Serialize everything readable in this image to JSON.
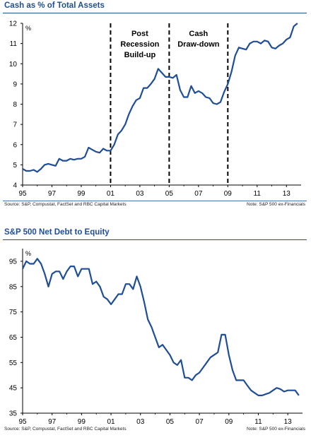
{
  "chart_data": [
    {
      "type": "line",
      "title": "Cash as % of Total Assets",
      "unit_label": "%",
      "xlim": [
        1995,
        2014
      ],
      "ylim": [
        4,
        12
      ],
      "y_ticks": [
        4,
        5,
        6,
        7,
        8,
        9,
        10,
        11,
        12
      ],
      "x_ticks": [
        1995,
        1997,
        1999,
        2001,
        2003,
        2005,
        2007,
        2009,
        2011,
        2013
      ],
      "x_tick_labels": [
        "95",
        "97",
        "99",
        "01",
        "03",
        "05",
        "07",
        "09",
        "11",
        "13"
      ],
      "line_color": "#1f4e96",
      "vlines": [
        2001,
        2005,
        2009
      ],
      "annotations": [
        {
          "lines": [
            "Post",
            "Recession",
            "Build-up"
          ],
          "x": 2003
        },
        {
          "lines": [
            "Cash",
            "Draw-down"
          ],
          "x": 2007
        }
      ],
      "series": [
        {
          "x": [
            1995,
            1995.25,
            1995.5,
            1995.75,
            1996,
            1996.25,
            1996.5,
            1996.75,
            1997,
            1997.25,
            1997.5,
            1997.75,
            1998,
            1998.25,
            1998.5,
            1998.75,
            1999,
            1999.25,
            1999.5,
            1999.75,
            2000,
            2000.25,
            2000.5,
            2000.75,
            2001,
            2001.25,
            2001.5,
            2001.75,
            2002,
            2002.25,
            2002.5,
            2002.75,
            2003,
            2003.25,
            2003.5,
            2003.75,
            2004,
            2004.25,
            2004.5,
            2004.75,
            2005,
            2005.25,
            2005.5,
            2005.75,
            2006,
            2006.25,
            2006.5,
            2006.75,
            2007,
            2007.25,
            2007.5,
            2007.75,
            2008,
            2008.25,
            2008.5,
            2008.75,
            2009,
            2009.25,
            2009.5,
            2009.75,
            2010,
            2010.25,
            2010.5,
            2010.75,
            2011,
            2011.25,
            2011.5,
            2011.75,
            2012,
            2012.25,
            2012.5,
            2012.75,
            2013,
            2013.25,
            2013.5,
            2013.75
          ],
          "values": [
            4.8,
            4.7,
            4.7,
            4.75,
            4.65,
            4.8,
            5.0,
            5.05,
            5.0,
            4.95,
            5.3,
            5.2,
            5.2,
            5.3,
            5.25,
            5.3,
            5.3,
            5.4,
            5.85,
            5.75,
            5.65,
            5.6,
            5.8,
            5.7,
            5.7,
            6.0,
            6.5,
            6.7,
            7.0,
            7.5,
            7.9,
            8.2,
            8.3,
            8.8,
            8.8,
            9.0,
            9.25,
            9.75,
            9.55,
            9.35,
            9.35,
            9.3,
            9.45,
            8.7,
            8.35,
            8.35,
            8.9,
            8.55,
            8.65,
            8.55,
            8.35,
            8.3,
            8.05,
            8.0,
            8.1,
            8.6,
            9.0,
            9.6,
            10.4,
            10.8,
            10.75,
            10.7,
            11.0,
            11.1,
            11.1,
            11.0,
            11.15,
            11.1,
            10.8,
            10.75,
            10.9,
            11.0,
            11.2,
            11.3,
            11.85,
            12.0
          ]
        }
      ],
      "source": "Source: S&P, Compustat, FactSet and RBC Capital Markets",
      "note": "Note: S&P 500  ex-Financials"
    },
    {
      "type": "line",
      "title": "S&P 500 Net Debt to Equity",
      "unit_label": "%",
      "xlim": [
        1995,
        2014
      ],
      "ylim": [
        35,
        100
      ],
      "y_ticks": [
        35,
        45,
        55,
        65,
        75,
        85,
        95
      ],
      "x_ticks": [
        1995,
        1997,
        1999,
        2001,
        2003,
        2005,
        2007,
        2009,
        2011,
        2013
      ],
      "x_tick_labels": [
        "95",
        "97",
        "99",
        "01",
        "03",
        "05",
        "07",
        "09",
        "11",
        "13"
      ],
      "line_color": "#1f4e96",
      "series": [
        {
          "x": [
            1995,
            1995.25,
            1995.5,
            1995.75,
            1996,
            1996.25,
            1996.5,
            1996.75,
            1997,
            1997.25,
            1997.5,
            1997.75,
            1998,
            1998.25,
            1998.5,
            1998.75,
            1999,
            1999.25,
            1999.5,
            1999.75,
            2000,
            2000.25,
            2000.5,
            2000.75,
            2001,
            2001.25,
            2001.5,
            2001.75,
            2002,
            2002.25,
            2002.5,
            2002.75,
            2003,
            2003.25,
            2003.5,
            2003.75,
            2004,
            2004.25,
            2004.5,
            2004.75,
            2005,
            2005.25,
            2005.5,
            2005.75,
            2006,
            2006.25,
            2006.5,
            2006.75,
            2007,
            2007.25,
            2007.5,
            2007.75,
            2008,
            2008.25,
            2008.5,
            2008.75,
            2009,
            2009.25,
            2009.5,
            2009.75,
            2010,
            2010.25,
            2010.5,
            2010.75,
            2011,
            2011.25,
            2011.5,
            2011.75,
            2012,
            2012.25,
            2012.5,
            2012.75,
            2013,
            2013.25,
            2013.5,
            2013.75
          ],
          "values": [
            92,
            95,
            94,
            94,
            96,
            94,
            90,
            85,
            90,
            91,
            91,
            88,
            91,
            93,
            93,
            89,
            92,
            92,
            92,
            86,
            87,
            85,
            81,
            80,
            78,
            80,
            82,
            82,
            86,
            86,
            84,
            89,
            85,
            79,
            72,
            69,
            65,
            61,
            62,
            60,
            58,
            55,
            54,
            56,
            49,
            49,
            48,
            50,
            51,
            53,
            55,
            57,
            58,
            59,
            66,
            66,
            58,
            52,
            48,
            48,
            48,
            46,
            44,
            43,
            42,
            42,
            42.5,
            43,
            44,
            45,
            44.5,
            43.5,
            44,
            44,
            44,
            42
          ]
        }
      ],
      "source": "Source: S&P, Compustat, FactSet and RBC Capital Markets",
      "note": "Note: S&P 500  ex-Financials"
    }
  ]
}
